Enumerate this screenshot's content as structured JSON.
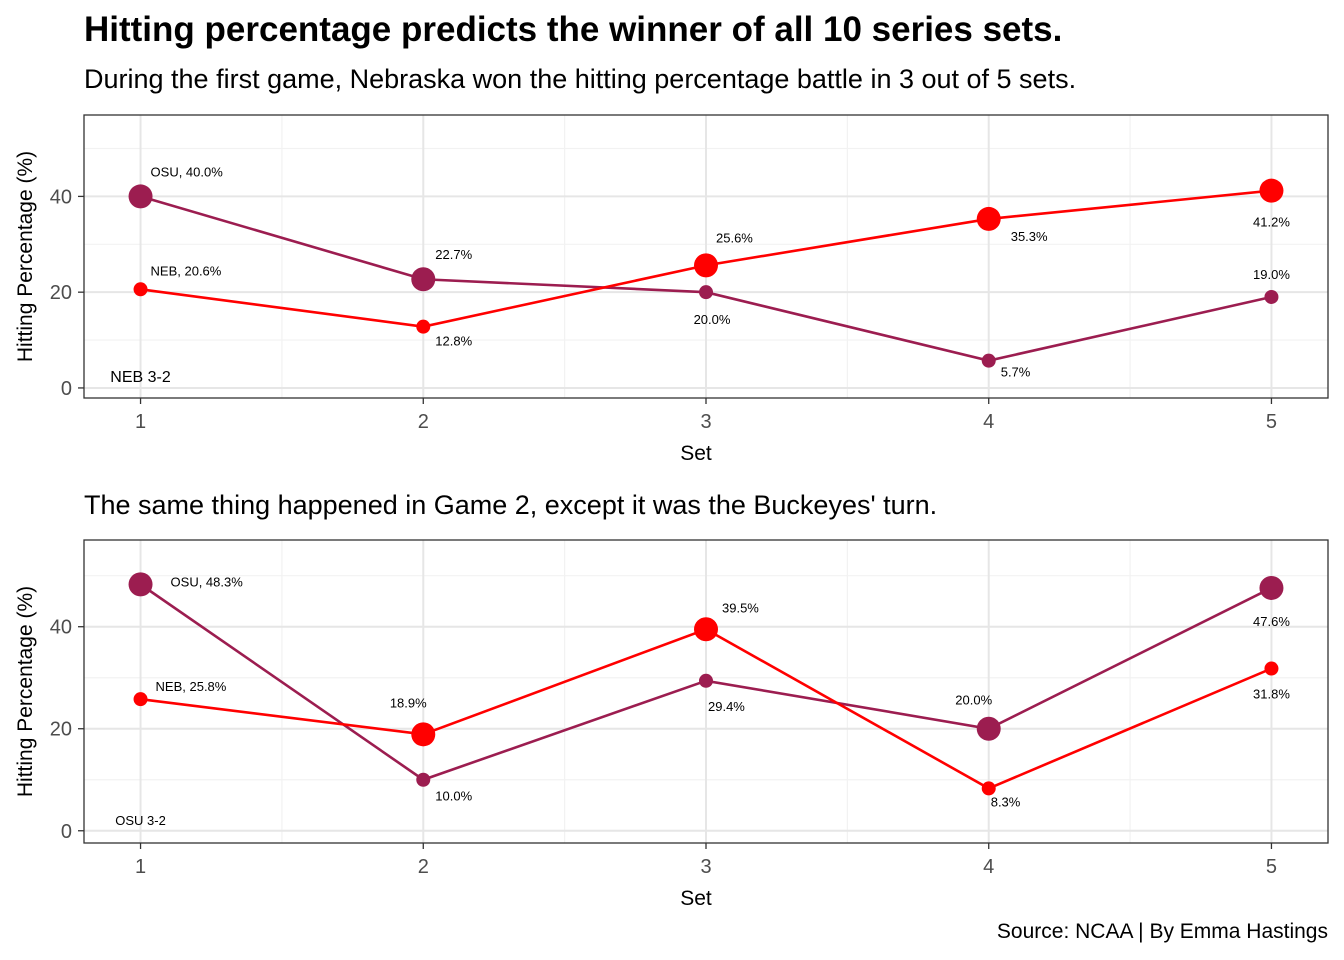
{
  "title": "Hitting percentage predicts the winner of all 10 series sets.",
  "caption": "Source: NCAA | By Emma Hastings",
  "colors": {
    "NEB": "#ff0000",
    "OSU": "#9c1d50",
    "grid_major": "#e6e6e6",
    "grid_minor": "#f2f2f2"
  },
  "chart_data": [
    {
      "type": "line",
      "subtitle": "During the first game, Nebraska won the hitting percentage battle in 3 out of 5 sets.",
      "xlabel": "Set",
      "ylabel": "Hitting Percentage (%)",
      "x": [
        1,
        2,
        3,
        4,
        5
      ],
      "x_ticks": [
        "1",
        "2",
        "3",
        "4",
        "5"
      ],
      "y_ticks": [
        "0",
        "20",
        "40"
      ],
      "xlim": [
        0.8,
        5.2
      ],
      "ylim": [
        -2.1,
        57
      ],
      "result_label": "NEB 3-2",
      "series": [
        {
          "name": "OSU",
          "values": [
            40.0,
            22.7,
            20.0,
            5.7,
            19.0
          ],
          "labels": [
            "OSU, 40.0%",
            "22.7%",
            "20.0%",
            "5.7%",
            "19.0%"
          ],
          "set_winner": [
            true,
            true,
            false,
            false,
            false
          ]
        },
        {
          "name": "NEB",
          "values": [
            20.6,
            12.8,
            25.6,
            35.3,
            41.2
          ],
          "labels": [
            "NEB, 20.6%",
            "12.8%",
            "25.6%",
            "35.3%",
            "41.2%"
          ],
          "set_winner": [
            false,
            false,
            true,
            true,
            true
          ]
        }
      ]
    },
    {
      "type": "line",
      "subtitle": "The same thing happened in Game 2, except it was the Buckeyes' turn.",
      "xlabel": "Set",
      "ylabel": "Hitting Percentage (%)",
      "x": [
        1,
        2,
        3,
        4,
        5
      ],
      "x_ticks": [
        "1",
        "2",
        "3",
        "4",
        "5"
      ],
      "y_ticks": [
        "0",
        "20",
        "40"
      ],
      "xlim": [
        0.8,
        5.2
      ],
      "ylim": [
        -2.4,
        57
      ],
      "result_label": "OSU 3-2",
      "series": [
        {
          "name": "OSU",
          "values": [
            48.3,
            10.0,
            29.4,
            20.0,
            47.6
          ],
          "labels": [
            "OSU, 48.3%",
            "10.0%",
            "29.4%",
            "20.0%",
            "47.6%"
          ],
          "set_winner": [
            true,
            false,
            false,
            true,
            true
          ]
        },
        {
          "name": "NEB",
          "values": [
            25.8,
            18.9,
            39.5,
            8.3,
            31.8
          ],
          "labels": [
            "NEB, 25.8%",
            "18.9%",
            "39.5%",
            "8.3%",
            "31.8%"
          ],
          "set_winner": [
            false,
            true,
            true,
            false,
            false
          ]
        }
      ]
    }
  ]
}
